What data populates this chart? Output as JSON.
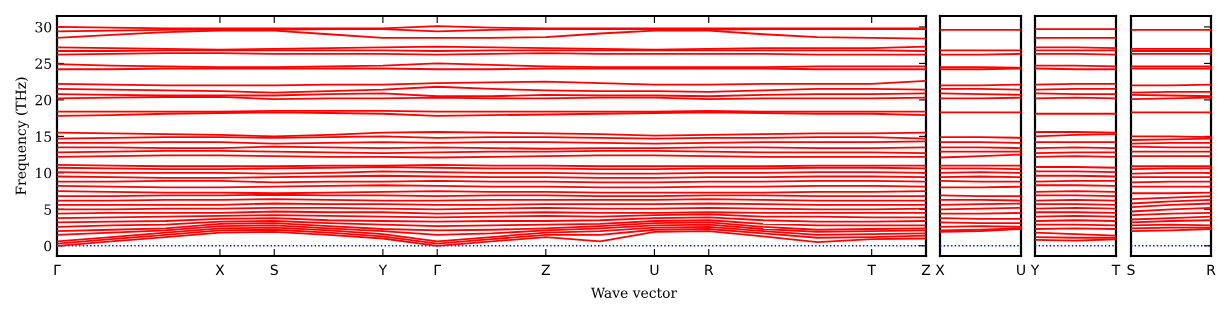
{
  "chart_data": [
    {
      "type": "line",
      "ylabel": "Frequency (THz)",
      "xlabel": "Wave vector",
      "ylim": [
        -1.4,
        31.5
      ],
      "yticks": [
        0,
        5,
        10,
        15,
        20,
        25,
        30
      ],
      "categories": [
        "Γ",
        null,
        null,
        "X",
        "S",
        null,
        "Y",
        "Γ",
        null,
        "Z",
        null,
        "U",
        "R",
        null,
        null,
        "T",
        "Z"
      ],
      "line_style": "solid",
      "marker": "none",
      "ref_lines": [
        {
          "axis": "y",
          "value": 0,
          "color": "#0000ff",
          "line_style": "dotted"
        }
      ],
      "series": [
        {
          "color": "#ff0000",
          "values": [
            0,
            0.6,
            1.2,
            1.8,
            1.9,
            1.5,
            1.0,
            0,
            0.6,
            1.2,
            0.6,
            1.9,
            2.0,
            1.3,
            0.5,
            0.9,
            1.0
          ]
        },
        {
          "color": "#ff0000",
          "values": [
            0.3,
            0.9,
            1.5,
            2.1,
            2.2,
            1.8,
            1.3,
            0.3,
            0.9,
            1.5,
            1.5,
            2.2,
            2.3,
            1.7,
            1.1,
            1.2,
            1.4
          ]
        },
        {
          "color": "#ff0000",
          "values": [
            0.6,
            1.2,
            1.8,
            2.4,
            2.5,
            2.1,
            1.6,
            0.6,
            1.2,
            1.8,
            2.0,
            2.5,
            2.6,
            2.0,
            1.5,
            1.6,
            1.7
          ]
        },
        {
          "color": "#ff0000",
          "values": [
            1.5,
            1.8,
            2.1,
            2.7,
            2.8,
            2.4,
            2.0,
            1.5,
            1.7,
            2.1,
            2.4,
            2.8,
            2.9,
            2.3,
            1.9,
            2.0,
            2.1
          ]
        },
        {
          "color": "#ff0000",
          "values": [
            2.0,
            2.2,
            2.4,
            3.0,
            3.1,
            2.7,
            2.3,
            2.1,
            2.2,
            2.4,
            2.7,
            3.1,
            3.2,
            2.6,
            2.2,
            2.3,
            2.4
          ]
        },
        {
          "color": "#ff0000",
          "values": [
            2.6,
            2.8,
            2.9,
            3.3,
            3.4,
            3.1,
            2.9,
            2.7,
            2.8,
            2.9,
            3.0,
            3.4,
            3.5,
            3.0,
            2.8,
            2.8,
            2.8
          ]
        },
        {
          "color": "#ff0000",
          "values": [
            3.2,
            3.3,
            3.4,
            3.7,
            3.8,
            3.5,
            3.4,
            3.3,
            3.4,
            3.4,
            3.5,
            3.8,
            3.9,
            3.5,
            3.3,
            3.3,
            3.4
          ]
        },
        {
          "color": "#ff0000",
          "values": [
            3.8,
            3.9,
            4.0,
            4.1,
            4.2,
            4.1,
            4.0,
            3.9,
            4.0,
            4.1,
            4.0,
            4.2,
            4.3,
            4.0,
            4.0,
            3.9,
            3.9
          ]
        },
        {
          "color": "#ff0000",
          "values": [
            4.4,
            4.5,
            4.5,
            4.5,
            4.7,
            4.6,
            4.6,
            4.4,
            4.5,
            4.6,
            4.5,
            4.5,
            4.6,
            4.5,
            4.5,
            4.5,
            4.5
          ]
        },
        {
          "color": "#ff0000",
          "values": [
            5.0,
            5.0,
            5.1,
            5.1,
            5.2,
            5.2,
            5.1,
            5.0,
            5.1,
            5.2,
            5.1,
            5.1,
            5.2,
            5.1,
            5.0,
            5.0,
            5.1
          ]
        },
        {
          "color": "#ff0000",
          "values": [
            5.6,
            5.6,
            5.6,
            5.6,
            5.8,
            5.7,
            5.7,
            5.6,
            5.6,
            5.7,
            5.7,
            5.7,
            5.8,
            5.7,
            5.6,
            5.6,
            5.6
          ]
        },
        {
          "color": "#ff0000",
          "values": [
            6.2,
            6.2,
            6.3,
            6.3,
            6.4,
            6.3,
            6.2,
            6.2,
            6.3,
            6.3,
            6.3,
            6.3,
            6.4,
            6.3,
            6.2,
            6.2,
            6.2
          ]
        },
        {
          "color": "#ff0000",
          "values": [
            6.8,
            6.8,
            6.9,
            6.9,
            7.0,
            6.9,
            6.9,
            6.8,
            6.9,
            6.9,
            6.8,
            6.8,
            6.9,
            6.9,
            6.8,
            6.8,
            6.8
          ]
        },
        {
          "color": "#ff0000",
          "values": [
            7.5,
            7.4,
            7.3,
            7.3,
            7.2,
            7.3,
            7.4,
            7.5,
            7.4,
            7.4,
            7.3,
            7.3,
            7.3,
            7.3,
            7.4,
            7.4,
            7.5
          ]
        },
        {
          "color": "#ff0000",
          "values": [
            8.2,
            8.1,
            8.0,
            8.0,
            8.1,
            8.2,
            8.3,
            8.2,
            8.1,
            8.1,
            8.0,
            8.0,
            8.1,
            8.1,
            8.2,
            8.2,
            8.1
          ]
        },
        {
          "color": "#ff0000",
          "values": [
            8.8,
            8.8,
            8.9,
            8.9,
            8.7,
            8.8,
            8.8,
            8.9,
            8.8,
            8.8,
            8.7,
            8.7,
            8.8,
            8.8,
            8.9,
            8.9,
            8.8
          ]
        },
        {
          "color": "#ff0000",
          "values": [
            9.5,
            9.4,
            9.3,
            9.3,
            9.4,
            9.5,
            9.6,
            9.5,
            9.4,
            9.4,
            9.3,
            9.3,
            9.4,
            9.4,
            9.5,
            9.5,
            9.4
          ]
        },
        {
          "color": "#ff0000",
          "values": [
            10.1,
            10.0,
            10.0,
            10.0,
            9.9,
            10.0,
            10.2,
            10.1,
            10.0,
            10.0,
            9.9,
            9.9,
            10.0,
            10.0,
            10.1,
            10.1,
            10.0
          ]
        },
        {
          "color": "#ff0000",
          "values": [
            10.7,
            10.6,
            10.5,
            10.5,
            10.6,
            10.7,
            10.8,
            10.7,
            10.6,
            10.6,
            10.5,
            10.5,
            10.6,
            10.6,
            10.7,
            10.7,
            10.6
          ]
        },
        {
          "color": "#ff0000",
          "values": [
            11.1,
            11.0,
            10.9,
            10.9,
            10.9,
            11.0,
            11.0,
            11.1,
            11.0,
            11.0,
            10.9,
            10.9,
            10.9,
            10.9,
            11.0,
            11.0,
            11.0
          ]
        },
        {
          "color": "#ff0000",
          "values": [
            12.2,
            12.3,
            12.4,
            12.4,
            12.3,
            12.2,
            12.2,
            12.1,
            12.2,
            12.3,
            12.4,
            12.4,
            12.3,
            12.2,
            12.2,
            12.2,
            12.2
          ]
        },
        {
          "color": "#ff0000",
          "values": [
            12.8,
            12.9,
            13.0,
            13.0,
            12.9,
            12.8,
            12.7,
            12.8,
            12.9,
            12.9,
            13.0,
            13.0,
            12.9,
            12.8,
            12.8,
            12.8,
            12.7
          ]
        },
        {
          "color": "#ff0000",
          "values": [
            13.5,
            13.5,
            13.4,
            13.4,
            13.6,
            13.5,
            13.4,
            13.5,
            13.4,
            13.3,
            13.4,
            13.4,
            13.5,
            13.5,
            13.4,
            13.4,
            13.5
          ]
        },
        {
          "color": "#ff0000",
          "values": [
            14.1,
            14.1,
            14.2,
            14.2,
            14.0,
            14.1,
            14.2,
            14.1,
            14.2,
            14.2,
            14.1,
            14.0,
            14.1,
            14.2,
            14.2,
            14.2,
            14.3
          ]
        },
        {
          "color": "#ff0000",
          "values": [
            14.7,
            14.8,
            14.9,
            14.9,
            14.8,
            14.9,
            15.0,
            14.8,
            14.9,
            14.9,
            14.8,
            14.7,
            14.8,
            14.8,
            14.9,
            14.9,
            14.7
          ]
        },
        {
          "color": "#ff0000",
          "values": [
            15.5,
            15.4,
            15.3,
            15.2,
            15.0,
            15.2,
            15.5,
            15.6,
            15.5,
            15.4,
            15.3,
            15.1,
            15.2,
            15.3,
            15.4,
            15.4,
            15.5
          ]
        },
        {
          "color": "#ff0000",
          "values": [
            17.8,
            17.9,
            18.1,
            18.2,
            18.3,
            18.2,
            18.1,
            17.8,
            17.9,
            18.0,
            18.1,
            18.2,
            18.3,
            18.2,
            18.1,
            18.1,
            17.9
          ]
        },
        {
          "color": "#ff0000",
          "values": [
            18.4,
            18.4,
            18.4,
            18.4,
            18.5,
            18.5,
            18.5,
            18.4,
            18.4,
            18.4,
            18.4,
            18.4,
            18.5,
            18.4,
            18.4,
            18.4,
            18.4
          ]
        },
        {
          "color": "#ff0000",
          "values": [
            20.2,
            20.3,
            20.4,
            20.4,
            20.1,
            20.2,
            20.2,
            20.3,
            20.2,
            20.2,
            20.3,
            20.3,
            20.1,
            20.2,
            20.2,
            20.2,
            20.3
          ]
        },
        {
          "color": "#ff0000",
          "values": [
            20.8,
            20.7,
            20.6,
            20.6,
            20.6,
            20.8,
            20.9,
            20.5,
            20.5,
            20.7,
            20.6,
            20.6,
            20.5,
            20.7,
            20.8,
            20.8,
            20.9
          ]
        },
        {
          "color": "#ff0000",
          "values": [
            21.5,
            21.4,
            21.3,
            21.2,
            21.0,
            21.2,
            21.4,
            21.8,
            21.5,
            21.3,
            21.2,
            21.2,
            21.1,
            21.3,
            21.5,
            21.5,
            21.4
          ]
        },
        {
          "color": "#ff0000",
          "values": [
            22.2,
            22.1,
            22.0,
            22.0,
            22.0,
            22.1,
            22.1,
            22.3,
            22.4,
            22.5,
            22.3,
            22.1,
            22.1,
            22.2,
            22.2,
            22.2,
            22.6
          ]
        },
        {
          "color": "#ff0000",
          "values": [
            24.2,
            24.2,
            24.3,
            24.3,
            24.3,
            24.3,
            24.3,
            24.2,
            24.2,
            24.3,
            24.3,
            24.3,
            24.3,
            24.3,
            24.2,
            24.2,
            24.2
          ]
        },
        {
          "color": "#ff0000",
          "values": [
            24.9,
            24.7,
            24.6,
            24.5,
            24.5,
            24.6,
            24.7,
            25.0,
            24.8,
            24.6,
            24.5,
            24.5,
            24.5,
            24.5,
            24.6,
            24.6,
            24.6
          ]
        },
        {
          "color": "#ff0000",
          "values": [
            26.2,
            26.3,
            26.4,
            26.4,
            26.3,
            26.3,
            26.3,
            26.2,
            26.3,
            26.4,
            26.3,
            26.3,
            26.3,
            26.3,
            26.2,
            26.2,
            26.2
          ]
        },
        {
          "color": "#ff0000",
          "values": [
            26.7,
            26.7,
            26.8,
            26.8,
            26.8,
            26.8,
            26.8,
            26.7,
            26.8,
            26.8,
            26.8,
            26.8,
            26.8,
            26.8,
            26.8,
            26.8,
            26.7
          ]
        },
        {
          "color": "#ff0000",
          "values": [
            27.2,
            27.1,
            27.0,
            26.9,
            27.0,
            27.1,
            27.2,
            27.3,
            27.2,
            27.1,
            27.0,
            26.9,
            27.0,
            27.1,
            27.1,
            27.1,
            27.3
          ]
        },
        {
          "color": "#ff0000",
          "values": [
            28.5,
            28.9,
            29.3,
            29.5,
            29.5,
            29.0,
            28.5,
            28.5,
            28.5,
            28.6,
            29.1,
            29.5,
            29.5,
            29.0,
            28.6,
            28.5,
            28.4
          ]
        },
        {
          "color": "#ff0000",
          "values": [
            29.4,
            29.5,
            29.6,
            29.6,
            29.6,
            29.7,
            29.7,
            29.4,
            29.6,
            29.7,
            29.7,
            29.7,
            29.6,
            29.7,
            29.7,
            29.7,
            29.7
          ]
        },
        {
          "color": "#ff0000",
          "values": [
            30.0,
            29.9,
            29.8,
            29.8,
            29.8,
            29.8,
            29.8,
            30.1,
            29.9,
            29.8,
            29.8,
            29.8,
            29.8,
            29.8,
            29.8,
            29.8,
            29.8
          ]
        }
      ]
    },
    {
      "type": "line",
      "ylim": [
        -1.4,
        31.5
      ],
      "yticks": [
        0,
        5,
        10,
        15,
        20,
        25,
        30
      ],
      "categories": [
        "X",
        null,
        "U"
      ],
      "tick_labels": "x",
      "line_style": "solid",
      "marker": "none",
      "ref_lines": [
        {
          "axis": "y",
          "value": 0,
          "color": "#0000ff",
          "line_style": "dotted"
        }
      ],
      "series": [
        {
          "color": "#ff0000",
          "values": [
            1.9,
            2.0,
            2.3
          ]
        },
        {
          "color": "#ff0000",
          "values": [
            2.1,
            2.2,
            2.4
          ]
        },
        {
          "color": "#ff0000",
          "values": [
            2.6,
            2.7,
            2.6
          ]
        },
        {
          "color": "#ff0000",
          "values": [
            3.2,
            3.1,
            3.1
          ]
        },
        {
          "color": "#ff0000",
          "values": [
            3.8,
            3.7,
            3.7
          ]
        },
        {
          "color": "#ff0000",
          "values": [
            4.4,
            4.4,
            4.5
          ]
        },
        {
          "color": "#ff0000",
          "values": [
            5.0,
            5.1,
            5.2
          ]
        },
        {
          "color": "#ff0000",
          "values": [
            5.6,
            5.7,
            5.8
          ]
        },
        {
          "color": "#ff0000",
          "values": [
            6.3,
            6.3,
            6.2
          ]
        },
        {
          "color": "#ff0000",
          "values": [
            6.9,
            6.8,
            6.8
          ]
        },
        {
          "color": "#ff0000",
          "values": [
            8.0,
            8.0,
            8.1
          ]
        },
        {
          "color": "#ff0000",
          "values": [
            8.9,
            8.8,
            8.8
          ]
        },
        {
          "color": "#ff0000",
          "values": [
            9.4,
            9.5,
            9.4
          ]
        },
        {
          "color": "#ff0000",
          "values": [
            10.0,
            10.1,
            10.0
          ]
        },
        {
          "color": "#ff0000",
          "values": [
            10.6,
            10.6,
            10.5
          ]
        },
        {
          "color": "#ff0000",
          "values": [
            11.0,
            11.0,
            11.0
          ]
        },
        {
          "color": "#ff0000",
          "values": [
            12.1,
            12.3,
            12.5
          ]
        },
        {
          "color": "#ff0000",
          "values": [
            12.9,
            12.9,
            12.9
          ]
        },
        {
          "color": "#ff0000",
          "values": [
            13.5,
            13.5,
            13.4
          ]
        },
        {
          "color": "#ff0000",
          "values": [
            14.2,
            14.2,
            14.1
          ]
        },
        {
          "color": "#ff0000",
          "values": [
            14.9,
            14.9,
            14.8
          ]
        },
        {
          "color": "#ff0000",
          "values": [
            18.3,
            18.3,
            18.3
          ]
        },
        {
          "color": "#ff0000",
          "values": [
            20.2,
            20.2,
            20.3
          ]
        },
        {
          "color": "#ff0000",
          "values": [
            20.9,
            20.8,
            20.7
          ]
        },
        {
          "color": "#ff0000",
          "values": [
            21.5,
            21.5,
            21.4
          ]
        },
        {
          "color": "#ff0000",
          "values": [
            22.0,
            22.0,
            22.1
          ]
        },
        {
          "color": "#ff0000",
          "values": [
            24.2,
            24.2,
            24.3
          ]
        },
        {
          "color": "#ff0000",
          "values": [
            24.5,
            24.5,
            24.4
          ]
        },
        {
          "color": "#ff0000",
          "values": [
            26.2,
            26.2,
            26.3
          ]
        },
        {
          "color": "#ff0000",
          "values": [
            26.8,
            26.8,
            26.8
          ]
        },
        {
          "color": "#ff0000",
          "values": [
            29.6,
            29.6,
            29.6
          ]
        }
      ]
    },
    {
      "type": "line",
      "ylim": [
        -1.4,
        31.5
      ],
      "yticks": [
        0,
        5,
        10,
        15,
        20,
        25,
        30
      ],
      "categories": [
        "Y",
        null,
        "T"
      ],
      "tick_labels": "x",
      "line_style": "solid",
      "marker": "none",
      "ref_lines": [
        {
          "axis": "y",
          "value": 0,
          "color": "#0000ff",
          "line_style": "dotted"
        }
      ],
      "series": [
        {
          "color": "#ff0000",
          "values": [
            0.8,
            0.7,
            0.9
          ]
        },
        {
          "color": "#ff0000",
          "values": [
            1.2,
            1.1,
            1.1
          ]
        },
        {
          "color": "#ff0000",
          "values": [
            1.8,
            1.6,
            1.4
          ]
        },
        {
          "color": "#ff0000",
          "values": [
            2.3,
            2.4,
            2.3
          ]
        },
        {
          "color": "#ff0000",
          "values": [
            2.9,
            2.9,
            2.8
          ]
        },
        {
          "color": "#ff0000",
          "values": [
            3.4,
            3.5,
            3.4
          ]
        },
        {
          "color": "#ff0000",
          "values": [
            4.0,
            4.1,
            4.0
          ]
        },
        {
          "color": "#ff0000",
          "values": [
            4.6,
            4.6,
            4.5
          ]
        },
        {
          "color": "#ff0000",
          "values": [
            5.1,
            5.2,
            5.1
          ]
        },
        {
          "color": "#ff0000",
          "values": [
            5.7,
            5.7,
            5.6
          ]
        },
        {
          "color": "#ff0000",
          "values": [
            6.2,
            6.3,
            6.2
          ]
        },
        {
          "color": "#ff0000",
          "values": [
            6.9,
            6.9,
            6.8
          ]
        },
        {
          "color": "#ff0000",
          "values": [
            7.4,
            7.5,
            7.4
          ]
        },
        {
          "color": "#ff0000",
          "values": [
            8.3,
            8.3,
            8.2
          ]
        },
        {
          "color": "#ff0000",
          "values": [
            8.8,
            8.9,
            8.9
          ]
        },
        {
          "color": "#ff0000",
          "values": [
            9.6,
            9.6,
            9.5
          ]
        },
        {
          "color": "#ff0000",
          "values": [
            10.2,
            10.2,
            10.1
          ]
        },
        {
          "color": "#ff0000",
          "values": [
            10.8,
            10.8,
            10.7
          ]
        },
        {
          "color": "#ff0000",
          "values": [
            12.2,
            12.3,
            12.2
          ]
        },
        {
          "color": "#ff0000",
          "values": [
            12.7,
            12.8,
            12.8
          ]
        },
        {
          "color": "#ff0000",
          "values": [
            13.4,
            13.5,
            13.4
          ]
        },
        {
          "color": "#ff0000",
          "values": [
            14.2,
            14.2,
            14.2
          ]
        },
        {
          "color": "#ff0000",
          "values": [
            15.0,
            15.2,
            15.3
          ]
        },
        {
          "color": "#ff0000",
          "values": [
            15.6,
            15.6,
            15.5
          ]
        },
        {
          "color": "#ff0000",
          "values": [
            18.1,
            18.1,
            18.1
          ]
        },
        {
          "color": "#ff0000",
          "values": [
            20.2,
            20.3,
            20.2
          ]
        },
        {
          "color": "#ff0000",
          "values": [
            20.9,
            20.8,
            20.8
          ]
        },
        {
          "color": "#ff0000",
          "values": [
            21.4,
            21.5,
            21.5
          ]
        },
        {
          "color": "#ff0000",
          "values": [
            22.1,
            22.2,
            22.2
          ]
        },
        {
          "color": "#ff0000",
          "values": [
            24.3,
            24.2,
            24.2
          ]
        },
        {
          "color": "#ff0000",
          "values": [
            24.7,
            24.7,
            24.6
          ]
        },
        {
          "color": "#ff0000",
          "values": [
            26.3,
            26.3,
            26.2
          ]
        },
        {
          "color": "#ff0000",
          "values": [
            26.8,
            26.8,
            26.8
          ]
        },
        {
          "color": "#ff0000",
          "values": [
            27.2,
            27.2,
            27.1
          ]
        },
        {
          "color": "#ff0000",
          "values": [
            28.5,
            28.5,
            28.5
          ]
        },
        {
          "color": "#ff0000",
          "values": [
            29.7,
            29.7,
            29.7
          ]
        }
      ]
    },
    {
      "type": "line",
      "ylim": [
        -1.4,
        31.5
      ],
      "yticks": [
        0,
        5,
        10,
        15,
        20,
        25,
        30
      ],
      "categories": [
        "S",
        null,
        "R"
      ],
      "tick_labels": "x",
      "line_style": "solid",
      "marker": "none",
      "ref_lines": [
        {
          "axis": "y",
          "value": 0,
          "color": "#0000ff",
          "line_style": "dotted"
        }
      ],
      "series": [
        {
          "color": "#ff0000",
          "values": [
            2.0,
            2.1,
            2.3
          ]
        },
        {
          "color": "#ff0000",
          "values": [
            2.4,
            2.5,
            2.5
          ]
        },
        {
          "color": "#ff0000",
          "values": [
            2.8,
            2.9,
            2.8
          ]
        },
        {
          "color": "#ff0000",
          "values": [
            3.2,
            3.4,
            3.5
          ]
        },
        {
          "color": "#ff0000",
          "values": [
            3.6,
            3.8,
            4.0
          ]
        },
        {
          "color": "#ff0000",
          "values": [
            4.2,
            4.4,
            4.5
          ]
        },
        {
          "color": "#ff0000",
          "values": [
            4.7,
            5.0,
            5.2
          ]
        },
        {
          "color": "#ff0000",
          "values": [
            5.3,
            5.6,
            5.8
          ]
        },
        {
          "color": "#ff0000",
          "values": [
            5.8,
            6.1,
            6.3
          ]
        },
        {
          "color": "#ff0000",
          "values": [
            6.4,
            6.6,
            6.8
          ]
        },
        {
          "color": "#ff0000",
          "values": [
            7.2,
            7.2,
            7.3
          ]
        },
        {
          "color": "#ff0000",
          "values": [
            8.1,
            8.1,
            8.1
          ]
        },
        {
          "color": "#ff0000",
          "values": [
            8.7,
            8.8,
            8.8
          ]
        },
        {
          "color": "#ff0000",
          "values": [
            9.4,
            9.4,
            9.4
          ]
        },
        {
          "color": "#ff0000",
          "values": [
            9.9,
            10.0,
            10.0
          ]
        },
        {
          "color": "#ff0000",
          "values": [
            10.5,
            10.6,
            10.6
          ]
        },
        {
          "color": "#ff0000",
          "values": [
            10.9,
            10.9,
            10.9
          ]
        },
        {
          "color": "#ff0000",
          "values": [
            12.3,
            12.3,
            12.3
          ]
        },
        {
          "color": "#ff0000",
          "values": [
            12.9,
            12.9,
            12.9
          ]
        },
        {
          "color": "#ff0000",
          "values": [
            13.6,
            13.5,
            13.5
          ]
        },
        {
          "color": "#ff0000",
          "values": [
            14.0,
            14.1,
            14.1
          ]
        },
        {
          "color": "#ff0000",
          "values": [
            14.5,
            14.6,
            14.7
          ]
        },
        {
          "color": "#ff0000",
          "values": [
            15.0,
            15.0,
            14.9
          ]
        },
        {
          "color": "#ff0000",
          "values": [
            18.3,
            18.3,
            18.3
          ]
        },
        {
          "color": "#ff0000",
          "values": [
            20.1,
            20.2,
            20.3
          ]
        },
        {
          "color": "#ff0000",
          "values": [
            20.7,
            20.6,
            20.5
          ]
        },
        {
          "color": "#ff0000",
          "values": [
            21.0,
            21.1,
            21.1
          ]
        },
        {
          "color": "#ff0000",
          "values": [
            22.0,
            22.0,
            22.1
          ]
        },
        {
          "color": "#ff0000",
          "values": [
            24.3,
            24.3,
            24.3
          ]
        },
        {
          "color": "#ff0000",
          "values": [
            24.6,
            24.6,
            24.6
          ]
        },
        {
          "color": "#ff0000",
          "values": [
            26.3,
            26.3,
            26.3
          ]
        },
        {
          "color": "#ff0000",
          "values": [
            26.7,
            26.7,
            26.7
          ]
        },
        {
          "color": "#ff0000",
          "values": [
            27.0,
            27.0,
            27.0
          ]
        },
        {
          "color": "#ff0000",
          "values": [
            29.6,
            29.6,
            29.6
          ]
        }
      ]
    }
  ]
}
